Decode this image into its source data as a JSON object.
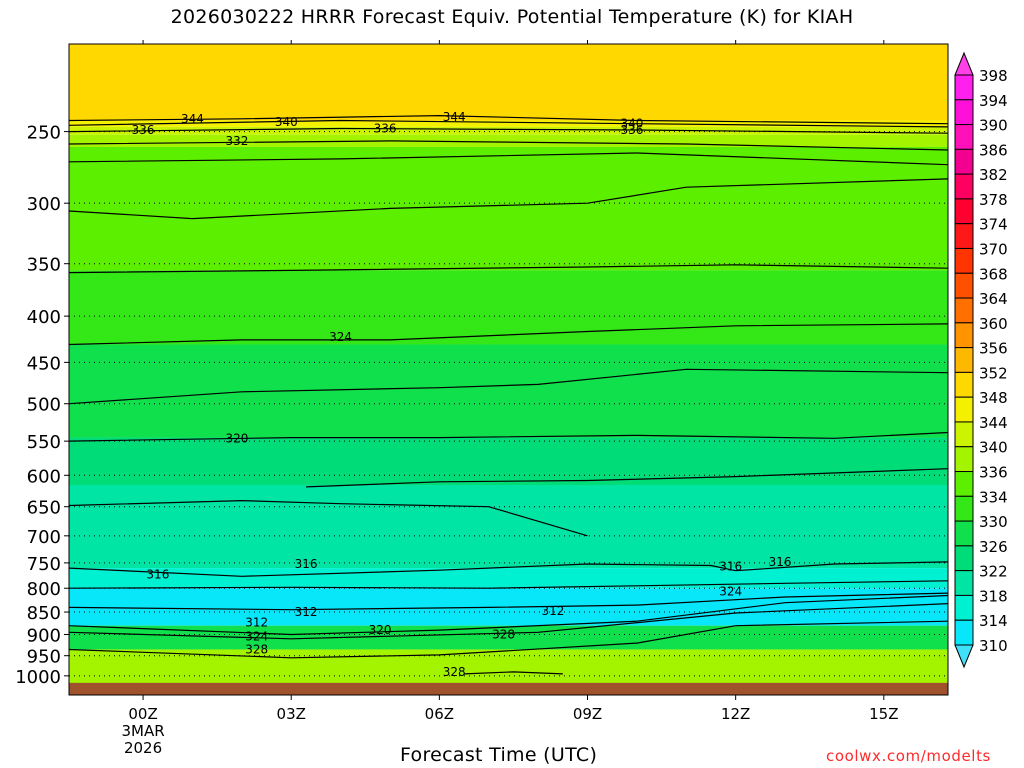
{
  "title": "2026030222 HRRR Forecast Equiv. Potential Temperature (K) for KIAH",
  "credit": "coolwx.com/modelts",
  "chart_data": {
    "type": "heatmap",
    "title": "2026030222 HRRR Forecast Equiv. Potential Temperature (K) for KIAH",
    "xlabel": "Forecast Time (UTC)",
    "ylabel": "",
    "x_range_hours": [
      -1.5,
      16.3
    ],
    "y_log_pressure": true,
    "y_range": [
      1050,
      200
    ],
    "x_ticks": [
      {
        "hour": 0,
        "label": "00Z",
        "sub1": "3MAR",
        "sub2": "2026"
      },
      {
        "hour": 3,
        "label": "03Z"
      },
      {
        "hour": 6,
        "label": "06Z"
      },
      {
        "hour": 9,
        "label": "09Z"
      },
      {
        "hour": 12,
        "label": "12Z"
      },
      {
        "hour": 15,
        "label": "15Z"
      }
    ],
    "y_ticks": [
      {
        "value": 250,
        "label": "250"
      },
      {
        "value": 300,
        "label": "300"
      },
      {
        "value": 350,
        "label": "350"
      },
      {
        "value": 400,
        "label": "400"
      },
      {
        "value": 450,
        "label": "450"
      },
      {
        "value": 500,
        "label": "500"
      },
      {
        "value": 550,
        "label": "550"
      },
      {
        "value": 600,
        "label": "600"
      },
      {
        "value": 650,
        "label": "650"
      },
      {
        "value": 700,
        "label": "700"
      },
      {
        "value": 750,
        "label": "750"
      },
      {
        "value": 800,
        "label": "800"
      },
      {
        "value": 850,
        "label": "850"
      },
      {
        "value": 900,
        "label": "900"
      },
      {
        "value": 950,
        "label": "950"
      },
      {
        "value": 1000,
        "label": "1000"
      }
    ],
    "colorbar": {
      "levels": [
        310,
        314,
        318,
        322,
        326,
        330,
        334,
        336,
        340,
        344,
        348,
        352,
        356,
        360,
        364,
        368,
        370,
        374,
        378,
        382,
        386,
        390,
        394,
        398
      ],
      "colors": [
        "#08e6fa",
        "#00f0d2",
        "#00e4a4",
        "#00dc78",
        "#10e04c",
        "#34e818",
        "#5cf000",
        "#a4f400",
        "#ccf400",
        "#f4f000",
        "#ffd800",
        "#ffb800",
        "#ff9400",
        "#ff7000",
        "#ff5000",
        "#ff3400",
        "#ff1818",
        "#ff0030",
        "#ff0060",
        "#f40090",
        "#ff10b8",
        "#ff10d8",
        "#ff20f0"
      ],
      "under_color": "#40e0f8",
      "over_color": "#ff40e8"
    },
    "series": [
      {
        "name": "344",
        "values": [
          [
            -1.5,
            243
          ],
          [
            2,
            242
          ],
          [
            6,
            240
          ],
          [
            10,
            243
          ],
          [
            16.3,
            245
          ]
        ]
      },
      {
        "name": "340",
        "values": [
          [
            -1.5,
            246
          ],
          [
            4,
            243
          ],
          [
            10,
            245
          ],
          [
            16.3,
            247
          ]
        ]
      },
      {
        "name": "336",
        "values": [
          [
            -1.5,
            250
          ],
          [
            4,
            248
          ],
          [
            10,
            249
          ],
          [
            16.3,
            251
          ]
        ]
      },
      {
        "name": "332",
        "values": [
          [
            -1.5,
            258
          ],
          [
            5,
            256
          ],
          [
            11,
            258
          ],
          [
            16.3,
            262
          ]
        ]
      },
      {
        "name": "328",
        "values": [
          [
            -1.5,
            270
          ],
          [
            4,
            268
          ],
          [
            10,
            264
          ],
          [
            16.3,
            272
          ]
        ]
      },
      {
        "name": "326",
        "values": [
          [
            -1.5,
            306
          ],
          [
            1,
            312
          ],
          [
            5,
            304
          ],
          [
            9,
            300
          ],
          [
            11,
            288
          ],
          [
            16.3,
            282
          ]
        ]
      },
      {
        "name": "324",
        "values": [
          [
            -1.5,
            358
          ],
          [
            3,
            356
          ],
          [
            9,
            353
          ],
          [
            12,
            351
          ],
          [
            16.3,
            354
          ]
        ]
      },
      {
        "name": "324",
        "values": [
          [
            -1.5,
            430
          ],
          [
            2,
            425
          ],
          [
            5,
            425
          ],
          [
            9,
            416
          ],
          [
            12,
            410
          ],
          [
            16.3,
            408
          ]
        ]
      },
      {
        "name": "322",
        "values": [
          [
            -1.5,
            500
          ],
          [
            2,
            485
          ],
          [
            6,
            480
          ],
          [
            8,
            476
          ],
          [
            11,
            458
          ],
          [
            16.3,
            462
          ]
        ]
      },
      {
        "name": "320",
        "values": [
          [
            -1.5,
            550
          ],
          [
            3,
            545
          ],
          [
            6,
            545
          ],
          [
            10,
            542
          ],
          [
            14,
            546
          ],
          [
            16.3,
            538
          ]
        ]
      },
      {
        "name": "318",
        "values": [
          [
            3.3,
            618
          ],
          [
            6,
            610
          ],
          [
            9,
            608
          ],
          [
            12,
            602
          ],
          [
            16.3,
            590
          ]
        ]
      },
      {
        "name": "318",
        "values": [
          [
            -1.5,
            648
          ],
          [
            2,
            640
          ],
          [
            4,
            645
          ],
          [
            7,
            650
          ],
          [
            9,
            700
          ]
        ]
      },
      {
        "name": "316",
        "values": [
          [
            -1.5,
            760
          ],
          [
            2,
            776
          ],
          [
            6,
            764
          ],
          [
            9,
            752
          ],
          [
            11.5,
            755
          ],
          [
            12,
            765
          ],
          [
            14,
            752
          ],
          [
            16.3,
            748
          ]
        ]
      },
      {
        "name": "314",
        "values": [
          [
            -1.5,
            800
          ],
          [
            3,
            798
          ],
          [
            7,
            800
          ],
          [
            10,
            795
          ],
          [
            13,
            790
          ],
          [
            16.3,
            785
          ]
        ]
      },
      {
        "name": "312",
        "values": [
          [
            -1.5,
            840
          ],
          [
            3,
            845
          ],
          [
            7,
            840
          ],
          [
            10,
            835
          ],
          [
            13,
            818
          ],
          [
            16.3,
            810
          ]
        ]
      },
      {
        "name": "320",
        "values": [
          [
            -1.5,
            880
          ],
          [
            3,
            900
          ],
          [
            6,
            890
          ],
          [
            10,
            870
          ],
          [
            13,
            830
          ],
          [
            16.3,
            815
          ]
        ]
      },
      {
        "name": "324",
        "values": [
          [
            -1.5,
            895
          ],
          [
            3,
            910
          ],
          [
            8,
            895
          ],
          [
            12,
            852
          ],
          [
            16.3,
            832
          ]
        ]
      },
      {
        "name": "328",
        "values": [
          [
            -1.5,
            935
          ],
          [
            3,
            955
          ],
          [
            6,
            948
          ],
          [
            10,
            920
          ],
          [
            12,
            880
          ],
          [
            16.3,
            870
          ]
        ]
      },
      {
        "name": "328",
        "values": [
          [
            6.5,
            995
          ],
          [
            7.5,
            990
          ],
          [
            8.5,
            995
          ]
        ]
      }
    ],
    "labels": [
      {
        "text": "344",
        "hour": 1,
        "p": 242
      },
      {
        "text": "344",
        "hour": 6.3,
        "p": 241
      },
      {
        "text": "340",
        "hour": 2.9,
        "p": 244
      },
      {
        "text": "340",
        "hour": 9.9,
        "p": 245
      },
      {
        "text": "336",
        "hour": 0,
        "p": 249
      },
      {
        "text": "336",
        "hour": 4.9,
        "p": 248
      },
      {
        "text": "336",
        "hour": 9.9,
        "p": 249
      },
      {
        "text": "332",
        "hour": 1.9,
        "p": 256
      },
      {
        "text": "324",
        "hour": 4.0,
        "p": 422
      },
      {
        "text": "320",
        "hour": 1.9,
        "p": 546
      },
      {
        "text": "316",
        "hour": 0.3,
        "p": 772
      },
      {
        "text": "316",
        "hour": 3.3,
        "p": 752
      },
      {
        "text": "316",
        "hour": 11.9,
        "p": 757
      },
      {
        "text": "316",
        "hour": 12.9,
        "p": 748
      },
      {
        "text": "312",
        "hour": 2.3,
        "p": 873
      },
      {
        "text": "312",
        "hour": 3.3,
        "p": 850
      },
      {
        "text": "312",
        "hour": 8.3,
        "p": 848
      },
      {
        "text": "324",
        "hour": 2.3,
        "p": 905
      },
      {
        "text": "324",
        "hour": 11.9,
        "p": 807
      },
      {
        "text": "320",
        "hour": 4.8,
        "p": 890
      },
      {
        "text": "328",
        "hour": 2.3,
        "p": 935
      },
      {
        "text": "328",
        "hour": 7.3,
        "p": 900
      },
      {
        "text": "328",
        "hour": 6.3,
        "p": 990
      }
    ]
  },
  "axis": {
    "xlabel": "Forecast Time (UTC)"
  }
}
